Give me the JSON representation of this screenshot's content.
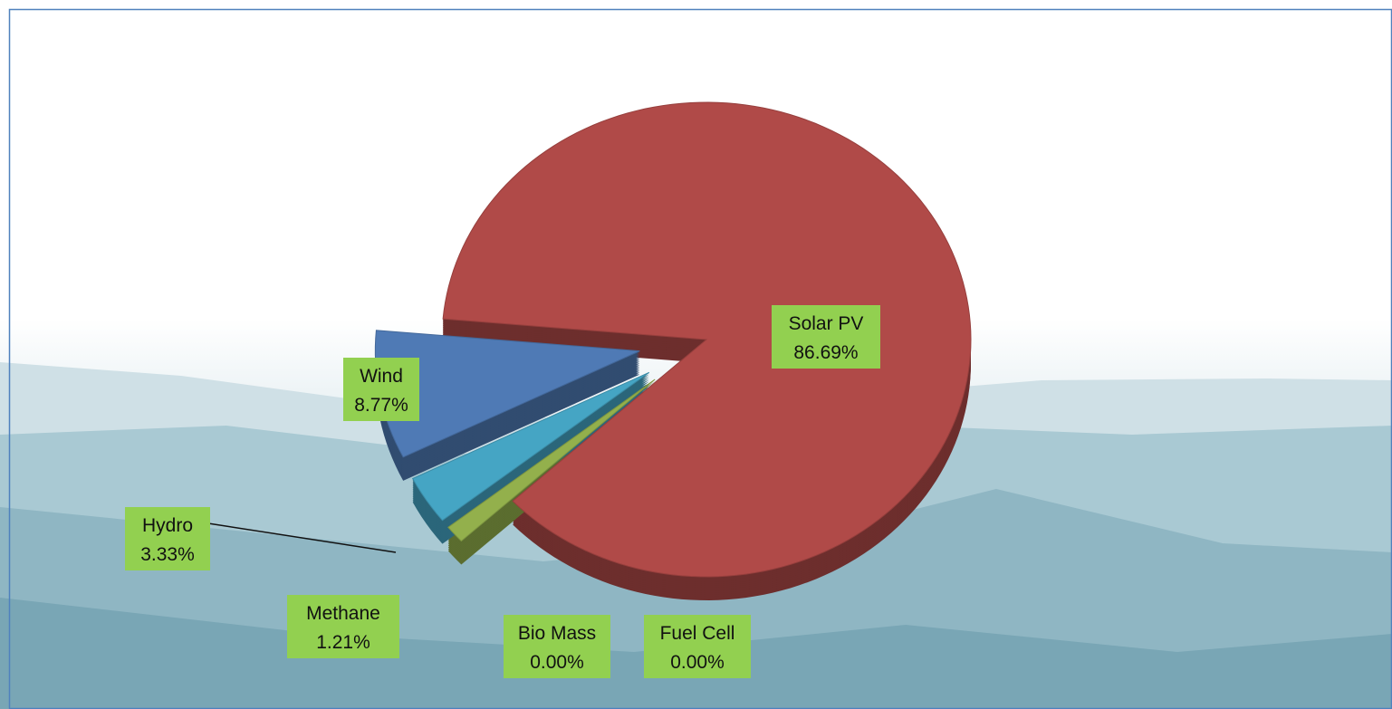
{
  "chart_data": {
    "type": "pie",
    "categories": [
      "Solar PV",
      "Methane",
      "Hydro",
      "Bio Mass",
      "Fuel Cell",
      "Wind"
    ],
    "values": [
      86.69,
      1.21,
      3.33,
      0.0,
      0.0,
      8.77
    ],
    "value_labels": [
      "86.69%",
      "1.21%",
      "3.33%",
      "0.00%",
      "0.00%",
      "8.77%"
    ],
    "colors": [
      "#b04a48",
      "#93b04c",
      "#45a5c4",
      "#7d60a0",
      "#d9813a",
      "#4f7ab5"
    ]
  }
}
